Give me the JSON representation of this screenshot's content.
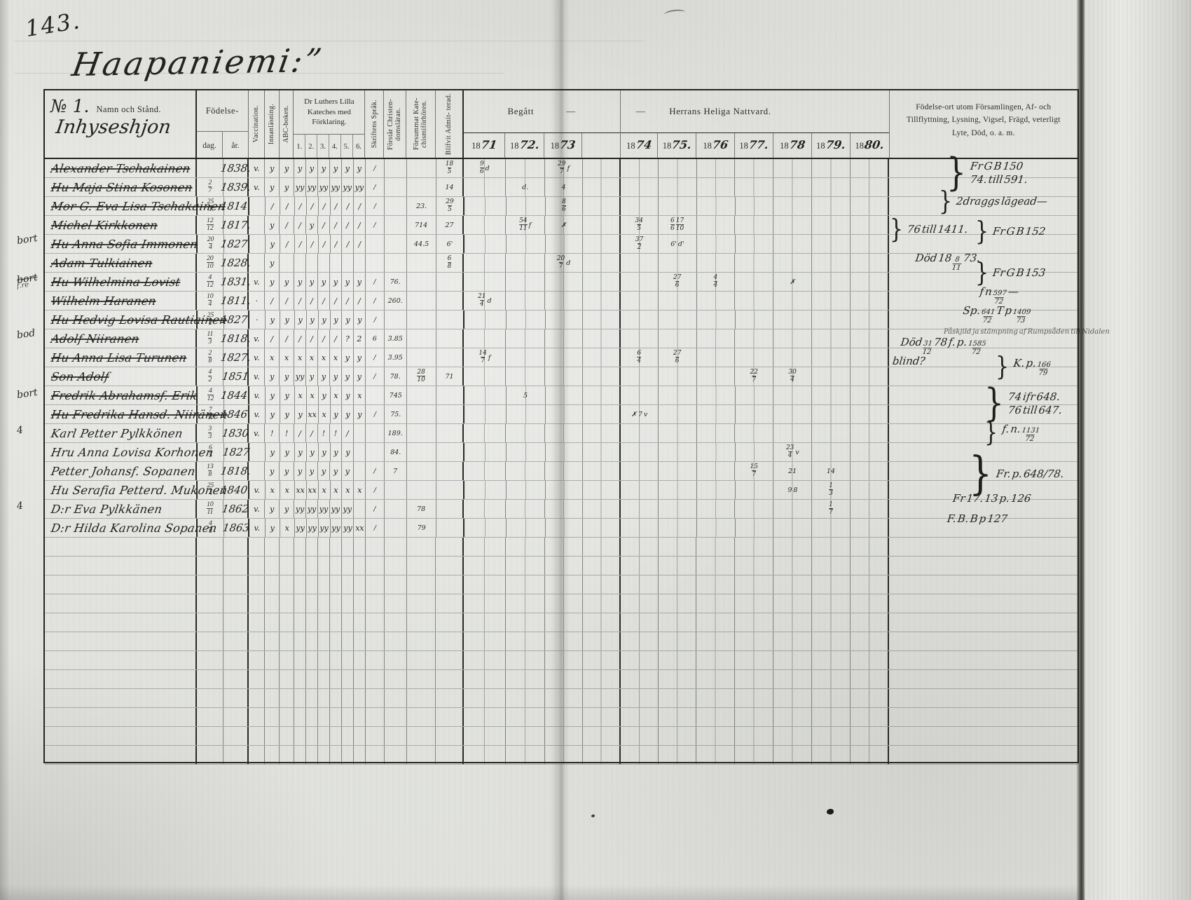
{
  "page": {
    "number": "143.",
    "title": "Haapaniemi:”"
  },
  "table": {
    "header": {
      "no_handwritten": "№ 1.",
      "name_label": "Namn och Stånd.",
      "group_handwritten": "Inhyseshjon",
      "birth_label": "Födelse-",
      "birth_day": "dag.",
      "birth_year": "år.",
      "vcols": [
        "Vaccination.",
        "Innanläsning.",
        "ABC-boken."
      ],
      "katekes_label": "Dr Luthers Lilla Kateches med Förklaring.",
      "katekes_nums": [
        "1.",
        "2.",
        "3.",
        "4.",
        "5.",
        "6."
      ],
      "vcols2": [
        "Skriftens Språk.",
        "Förstår Christen- domsläran.",
        "Försummat Kate- chismiförhören.",
        "Blifvit Admit- terad."
      ],
      "begatt_label": "Begått",
      "begatt_dash": "—",
      "natt_dash": "—",
      "natt_label": "Herrans Heliga Nattvard.",
      "year_prefix": "18",
      "years_begatt": [
        "71",
        "72.",
        "73",
        ""
      ],
      "years_natt": [
        "74",
        "75.",
        "76",
        "77.",
        "78",
        "79.",
        "80."
      ],
      "notes_label": "Födelse-ort utom Församlingen, Af- och Tillflyttning, Lysning, Vigsel, Frägd, veterligt Lyte, Död, o. a. m."
    },
    "rows": [
      {
        "name": "Alexander Tschakainen",
        "struck": true,
        "day": "",
        "year": "1838.",
        "vacc": "v.",
        "marks": [
          "y",
          "y",
          "y",
          "y",
          "y",
          "y",
          "y",
          "y"
        ],
        "skrift": "/",
        "forstar": "",
        "forsummat": "",
        "admit": "18/5",
        "years": {
          "71": "9/6 d",
          "73": "29/7 f"
        }
      },
      {
        "name": "Hu Maja Stina Kosonen",
        "struck": true,
        "day": "2/7",
        "year": "1839.",
        "vacc": "v.",
        "marks": [
          "y",
          "y",
          "yy",
          "yy",
          "yy",
          "yy",
          "yy",
          "yy"
        ],
        "skrift": "/",
        "forstar": "",
        "forsummat": "",
        "admit": "14",
        "years": {
          "72": "d.",
          "73": "4"
        }
      },
      {
        "name": "Mor G. Eva Lisa Tschakainen",
        "struck": true,
        "day": "25/1",
        "year": "1814.",
        "vacc": "",
        "marks": [
          "/",
          "/",
          "/",
          "/",
          "/",
          "/",
          "/",
          "/"
        ],
        "skrift": "/",
        "forstar": "",
        "forsummat": "23.",
        "admit": "29/5",
        "years": {
          "73": "8/6"
        }
      },
      {
        "name": "Michel Kirkkonen",
        "struck": true,
        "day": "12/12",
        "year": "1817.",
        "vacc": "",
        "marks": [
          "y",
          "/",
          "/",
          "y",
          "/",
          "/",
          "/",
          "/"
        ],
        "skrift": "/",
        "forstar": "",
        "forsummat": "714",
        "admit": "27",
        "years": {
          "72": "54/11 f",
          "73": "✗",
          "74": "34/5",
          "75": "6/6 17/10"
        }
      },
      {
        "name": "Hu Anna Sofia Immonen",
        "struck": true,
        "day": "20/4",
        "year": "1827.",
        "vacc": "",
        "marks": [
          "y",
          "/",
          "/",
          "/",
          "/",
          "/",
          "/",
          "/"
        ],
        "skrift": "",
        "forstar": "",
        "forsummat": "44.5",
        "admit": "6'",
        "years": {
          "74": "37/2",
          "75": "6' d'"
        }
      },
      {
        "name": "Adam Tulkiainen",
        "struck": true,
        "day": "20/10",
        "year": "1828.",
        "vacc": "",
        "marks": [
          "y",
          "",
          "",
          "",
          "",
          "",
          "",
          ""
        ],
        "skrift": "",
        "forstar": "",
        "forsummat": "",
        "admit": "6/8",
        "years": {
          "73": "20/7 d"
        }
      },
      {
        "name": "Hu Wilhelmina Lovist",
        "struck": true,
        "day": "4/12",
        "year": "1831.",
        "vacc": "v.",
        "marks": [
          "y",
          "y",
          "y",
          "y",
          "y",
          "y",
          "y",
          "y"
        ],
        "skrift": "/",
        "forstar": "76.",
        "forsummat": "",
        "admit": "",
        "years": {
          "75": "27/6",
          "76": "4/4",
          "78": "✗"
        }
      },
      {
        "name": "Wilhelm Haranen",
        "struck": true,
        "day": "10/4",
        "year": "1811.",
        "vacc": "·",
        "marks": [
          "/",
          "/",
          "/",
          "/",
          "/",
          "/",
          "/",
          "/"
        ],
        "skrift": "/",
        "forstar": "260.",
        "forsummat": "",
        "admit": "",
        "years": {
          "71": "21/4 d"
        }
      },
      {
        "name": "Hu Hedvig Lovisa Rautiainen",
        "struck": true,
        "day": "25/2",
        "year": "1827.",
        "vacc": "·",
        "marks": [
          "y",
          "y",
          "y",
          "y",
          "y",
          "y",
          "y",
          "y"
        ],
        "skrift": "/",
        "forstar": "",
        "forsummat": "",
        "admit": "",
        "years": {}
      },
      {
        "name": "Adolf Niiranen",
        "struck": true,
        "day": "11/3",
        "year": "1818.",
        "vacc": "v.",
        "marks": [
          "/",
          "/",
          "/",
          "/",
          "/",
          "/",
          "?",
          "2"
        ],
        "skrift": "6",
        "forstar": "3.85",
        "forsummat": "",
        "admit": "",
        "years": {}
      },
      {
        "name": "Hu Anna Lisa Turunen",
        "struck": true,
        "day": "2/8",
        "year": "1827.",
        "vacc": "v.",
        "marks": [
          "x",
          "x",
          "x",
          "x",
          "x",
          "x",
          "y",
          "y"
        ],
        "skrift": "/",
        "forstar": "3.95",
        "forsummat": "",
        "admit": "",
        "years": {
          "71": "14/7 f",
          "74": "6/4",
          "75": "27/6"
        }
      },
      {
        "name": "Son Adolf",
        "struck": true,
        "day": "4/2",
        "year": "1851",
        "vacc": "v.",
        "marks": [
          "y",
          "y",
          "yy",
          "y",
          "y",
          "y",
          "y",
          "y"
        ],
        "skrift": "/",
        "forstar": "78.",
        "forsummat": "28/10",
        "admit": "71",
        "years": {
          "77": "22/7",
          "78": "30/4"
        }
      },
      {
        "name": "Fredrik Abrahamsf. Erik",
        "struck": true,
        "day": "4/12",
        "year": "1844.",
        "vacc": "v.",
        "marks": [
          "y",
          "y",
          "x",
          "x",
          "y",
          "x",
          "y",
          "x"
        ],
        "skrift": "",
        "forstar": "745",
        "forsummat": "",
        "admit": "",
        "years": {
          "72": "5"
        }
      },
      {
        "name": "Hu Fredrika Hansd. Niiränen",
        "struck": true,
        "day": "7/11",
        "year": "1846.",
        "vacc": "v.",
        "marks": [
          "y",
          "y",
          "y",
          "xx",
          "x",
          "y",
          "y",
          "y"
        ],
        "skrift": "/",
        "forstar": "75.",
        "forsummat": "",
        "admit": "",
        "years": {
          "74": "✗ 7 v"
        }
      },
      {
        "name": "Karl Petter Pylkkönen",
        "struck": false,
        "day": "3/3",
        "year": "1830",
        "vacc": "v.",
        "marks": [
          "!",
          "!",
          "/",
          "/",
          "!",
          "!",
          "/",
          ""
        ],
        "skrift": "",
        "forstar": "189.",
        "forsummat": "",
        "admit": "",
        "years": {}
      },
      {
        "name": "Hru Anna Lovisa Korhonen",
        "struck": false,
        "day": "6/5",
        "year": "1827",
        "vacc": "",
        "marks": [
          "y",
          "y",
          "y",
          "y",
          "y",
          "y",
          "y",
          ""
        ],
        "skrift": "",
        "forstar": "84.",
        "forsummat": "",
        "admit": "",
        "years": {
          "78": "23/4 v"
        }
      },
      {
        "name": "Petter Johansf. Sopanen",
        "struck": false,
        "day": "13/8",
        "year": "1818.",
        "vacc": "",
        "marks": [
          "y",
          "y",
          "y",
          "y",
          "y",
          "y",
          "y",
          ""
        ],
        "skrift": "/",
        "forstar": "7",
        "forsummat": "",
        "admit": "",
        "years": {
          "77": "15/7",
          "78": "21",
          "79": "14"
        }
      },
      {
        "name": "Hu Serafia Petterd. Mukonen",
        "struck": false,
        "day": "25/4",
        "year": "1840.",
        "vacc": "v.",
        "marks": [
          "x",
          "x",
          "xx",
          "xx",
          "x",
          "x",
          "x",
          "x"
        ],
        "skrift": "/",
        "forstar": "",
        "forsummat": "",
        "admit": "",
        "years": {
          "78": "9 8",
          "79": "1/3"
        }
      },
      {
        "name": "D:r Eva Pylkkänen",
        "struck": false,
        "day": "10/11",
        "year": "1862",
        "vacc": "v.",
        "marks": [
          "y",
          "y",
          "yy",
          "yy",
          "yy",
          "yy",
          "yy",
          ""
        ],
        "skrift": "/",
        "forstar": "",
        "forsummat": "78",
        "admit": "",
        "years": {
          "79": "1/7"
        }
      },
      {
        "name": "D:r Hilda Karolina Sopanen",
        "struck": false,
        "day": "4/8",
        "year": "1863",
        "vacc": "v.",
        "marks": [
          "y",
          "x",
          "yy",
          "yy",
          "yy",
          "yy",
          "yy",
          "xx"
        ],
        "skrift": "/",
        "forstar": "",
        "forsummat": "79",
        "admit": "",
        "years": {}
      }
    ],
    "empty_row_count": 12
  },
  "side_notes": [
    {
      "row": 0.15,
      "indent": 0.3,
      "brace": true,
      "lines": [
        "Fr G B 150",
        "74. till 591."
      ]
    },
    {
      "row": 1.95,
      "indent": 0.26,
      "brace": true,
      "lines": [
        "2draggs lägead—"
      ]
    },
    {
      "row": 3.45,
      "indent": 0.0,
      "brace": true,
      "lines": [
        "76 till 1411."
      ]
    },
    {
      "row": 3.55,
      "indent": 0.45,
      "brace": true,
      "lines": [
        "Fr G B 152"
      ]
    },
    {
      "row": 5.25,
      "indent": 0.13,
      "brace": false,
      "lines": [
        "Död 18 8/11 73."
      ]
    },
    {
      "row": 5.75,
      "indent": 0.45,
      "brace": true,
      "lines": [
        "Fr G B 153"
      ]
    },
    {
      "row": 7.05,
      "indent": 0.47,
      "brace": false,
      "lines": [
        "f n 597/72 —"
      ]
    },
    {
      "row": 8.05,
      "indent": 0.38,
      "brace": false,
      "lines": [
        "Sp. 641/72  T p 1409/73"
      ]
    },
    {
      "row": 9.3,
      "indent": 0.28,
      "brace": false,
      "small": true,
      "lines": [
        "Påskjild ja stämpning af Rumpsåden till Nidalen"
      ]
    },
    {
      "row": 9.72,
      "indent": 0.05,
      "brace": false,
      "lines": [
        "Död 31/12 78   f. p. 1585/72"
      ]
    },
    {
      "row": 10.7,
      "indent": 0.01,
      "brace": false,
      "lines": [
        "blind?"
      ]
    },
    {
      "row": 10.72,
      "indent": 0.56,
      "brace": true,
      "lines": [
        "K. p. 166/79"
      ]
    },
    {
      "row": 12.35,
      "indent": 0.5,
      "brace": true,
      "lines": [
        "74 ifr 648.",
        "76 till 647."
      ]
    },
    {
      "row": 14.2,
      "indent": 0.5,
      "brace": true,
      "lines": [
        "f. n. 1131/72"
      ]
    },
    {
      "row": 15.9,
      "indent": 0.42,
      "brace": true,
      "big": true,
      "lines": [
        "Fr. p. 648/78."
      ]
    },
    {
      "row": 17.95,
      "indent": 0.33,
      "brace": false,
      "lines": [
        "Fr 17. 13 p. 126"
      ]
    },
    {
      "row": 19.05,
      "indent": 0.3,
      "brace": false,
      "lines": [
        "F. B. B p 127"
      ]
    }
  ],
  "margin_notes": [
    {
      "row": 4.05,
      "text": "bort"
    },
    {
      "row": 6.1,
      "text": "bort",
      "strike": true
    },
    {
      "row": 6.55,
      "text": "f.re",
      "small": true
    },
    {
      "row": 9.05,
      "text": "bod"
    },
    {
      "row": 12.2,
      "text": "bort"
    },
    {
      "row": 14.1,
      "text": "4"
    },
    {
      "row": 18.1,
      "text": "4"
    }
  ],
  "colors": {
    "paper": "#e4e5e1",
    "ink": "#23221f",
    "printed_ink": "#2e2c28",
    "rule_line": "#606c6c",
    "frame_line": "#26241f"
  }
}
